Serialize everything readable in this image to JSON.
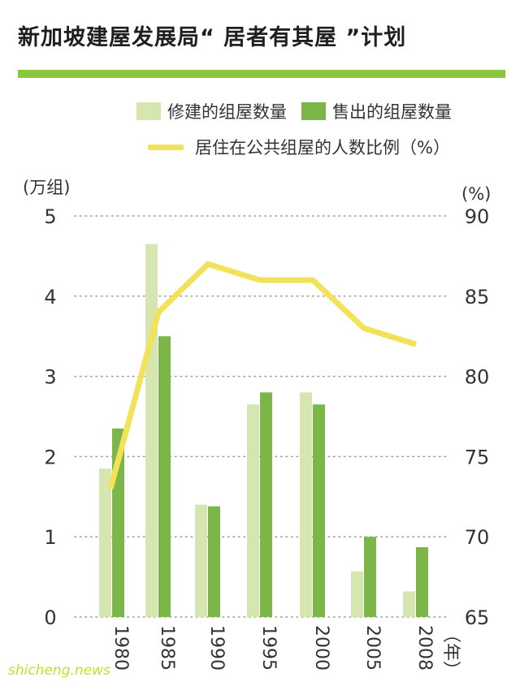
{
  "chart_data": {
    "type": "bar",
    "title": "新加坡建屋发展局“ 居者有其屋 ”计划",
    "categories": [
      "1980",
      "1985",
      "1990",
      "1995",
      "2000",
      "2005",
      "2008"
    ],
    "series": [
      {
        "name": "修建的组屋数量",
        "kind": "bar",
        "axis": "left",
        "color": "#d6e6b0",
        "values": [
          1.85,
          4.65,
          1.4,
          2.65,
          2.8,
          0.57,
          0.32
        ]
      },
      {
        "name": "售出的组屋数量",
        "kind": "bar",
        "axis": "left",
        "color": "#7ab648",
        "values": [
          2.35,
          3.5,
          1.38,
          2.8,
          2.65,
          1.0,
          0.87
        ]
      },
      {
        "name": "居住在公共组屋的人数比例（%）",
        "kind": "line",
        "axis": "right",
        "color": "#f2e25a",
        "values": [
          73,
          84,
          87,
          86,
          86,
          83,
          82
        ]
      }
    ],
    "left_axis": {
      "label": "(万组)",
      "min": 0,
      "max": 5,
      "ticks": [
        "0",
        "1",
        "2",
        "3",
        "4",
        "5"
      ]
    },
    "right_axis": {
      "label": "(%)",
      "min": 65,
      "max": 90,
      "ticks": [
        "65",
        "70",
        "75",
        "80",
        "85",
        "90"
      ]
    },
    "x_axis": {
      "unit_label": "（年）"
    },
    "grid": "dotted horizontal",
    "legend": "top"
  },
  "watermark": "shicheng.news"
}
